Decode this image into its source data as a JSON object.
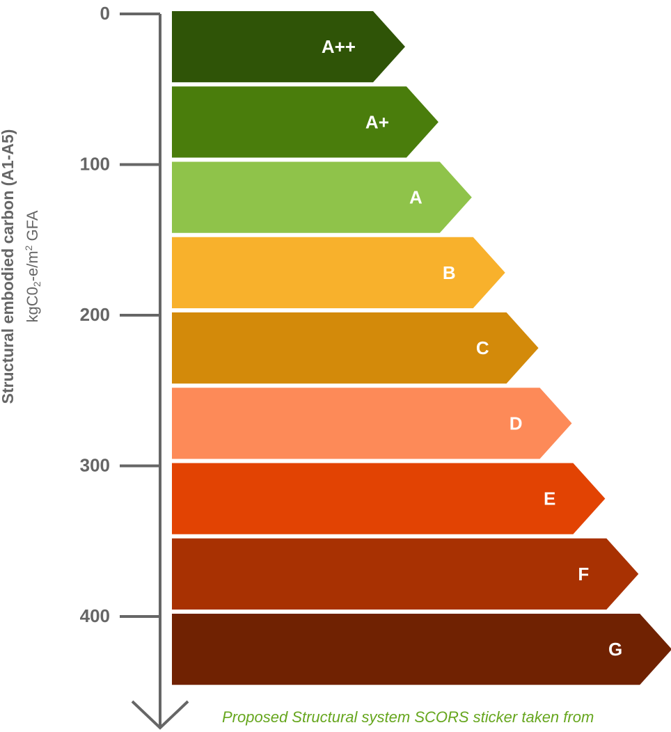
{
  "chart_data": {
    "type": "bar",
    "orientation": "horizontal",
    "categories": [
      "A++",
      "A+",
      "A",
      "B",
      "C",
      "D",
      "E",
      "F",
      "G"
    ],
    "values": [
      50,
      50,
      50,
      50,
      50,
      50,
      50,
      50,
      50
    ],
    "series": [
      {
        "values": [
          {
            "label": "A++",
            "from": 0,
            "to": 50,
            "color": "#2f5407"
          },
          {
            "label": "A+",
            "from": 50,
            "to": 100,
            "color": "#4a7d0c"
          },
          {
            "label": "A",
            "from": 100,
            "to": 150,
            "color": "#8fc34a"
          },
          {
            "label": "B",
            "from": 150,
            "to": 200,
            "color": "#f8b12c"
          },
          {
            "label": "C",
            "from": 200,
            "to": 250,
            "color": "#d38a0a"
          },
          {
            "label": "D",
            "from": 250,
            "to": 300,
            "color": "#fd8a58"
          },
          {
            "label": "E",
            "from": 300,
            "to": 350,
            "color": "#e24303"
          },
          {
            "label": "F",
            "from": 350,
            "to": 400,
            "color": "#a83102"
          },
          {
            "label": "G",
            "from": 400,
            "to": 450,
            "color": "#702202"
          }
        ]
      }
    ],
    "yaxis": {
      "ticks": [
        0,
        100,
        200,
        300,
        400
      ],
      "tick_labels": [
        "0",
        "100",
        "200",
        "300",
        "400"
      ],
      "range": [
        0,
        450
      ],
      "direction": "downward"
    },
    "ylabel_main": "Structural embodied carbon (A1-A5)",
    "ylabel_unit_parts": [
      "kgC0",
      "2",
      "-e/m",
      "2",
      " GFA"
    ],
    "legend": "none",
    "grid": false
  },
  "caption": "Proposed Structural system SCORS sticker taken from",
  "colors": {
    "axis": "#666666",
    "caption": "#66a61e",
    "label_text": "#ffffff"
  }
}
